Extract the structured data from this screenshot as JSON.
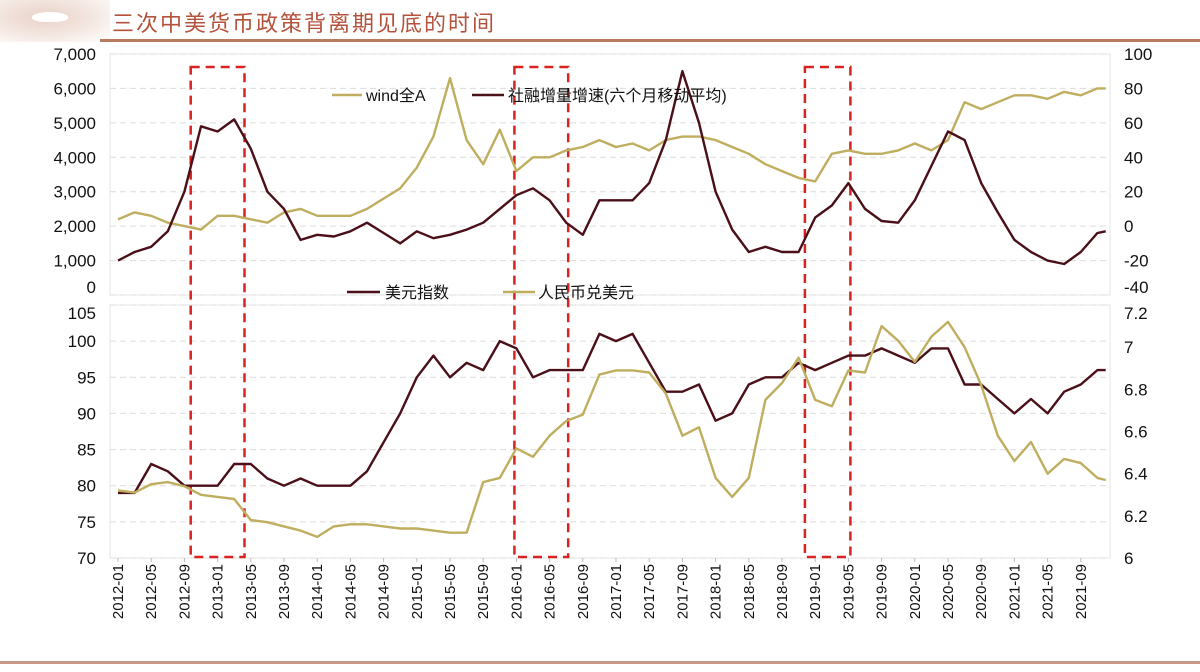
{
  "header": {
    "title": "三次中美货币政策背离期见底的时间"
  },
  "colors": {
    "gold": "#bfae5f",
    "dark": "#4a0f18",
    "highlight": "#d92222",
    "title": "#b4523c"
  },
  "chart_data": [
    {
      "type": "line",
      "title": "",
      "left_axis": {
        "ylim": [
          0,
          7000
        ],
        "ticks": [
          "0",
          "1,000",
          "2,000",
          "3,000",
          "4,000",
          "5,000",
          "6,000",
          "7,000"
        ]
      },
      "right_axis": {
        "ylim": [
          -40,
          100
        ],
        "ticks": [
          "-40",
          "-20",
          "0",
          "20",
          "40",
          "60",
          "80",
          "100"
        ]
      },
      "grid": true,
      "legend": "top-center",
      "series": [
        {
          "name": "wind全A",
          "axis": "left",
          "color": "#bfae5f",
          "x": [
            "2012-01",
            "2012-03",
            "2012-05",
            "2012-07",
            "2012-09",
            "2012-11",
            "2013-01",
            "2013-03",
            "2013-05",
            "2013-07",
            "2013-09",
            "2013-11",
            "2014-01",
            "2014-03",
            "2014-05",
            "2014-07",
            "2014-09",
            "2014-11",
            "2015-01",
            "2015-03",
            "2015-05",
            "2015-07",
            "2015-09",
            "2015-11",
            "2016-01",
            "2016-03",
            "2016-05",
            "2016-07",
            "2016-09",
            "2016-11",
            "2017-01",
            "2017-03",
            "2017-05",
            "2017-07",
            "2017-09",
            "2017-11",
            "2018-01",
            "2018-03",
            "2018-05",
            "2018-07",
            "2018-09",
            "2018-11",
            "2019-01",
            "2019-03",
            "2019-05",
            "2019-07",
            "2019-09",
            "2019-11",
            "2020-01",
            "2020-03",
            "2020-05",
            "2020-07",
            "2020-09",
            "2020-11",
            "2021-01",
            "2021-03",
            "2021-05",
            "2021-07",
            "2021-09",
            "2021-11",
            "2021-12"
          ],
          "values": [
            2200,
            2400,
            2300,
            2100,
            2000,
            1900,
            2300,
            2300,
            2200,
            2100,
            2400,
            2500,
            2300,
            2300,
            2300,
            2500,
            2800,
            3100,
            3700,
            4600,
            6300,
            4500,
            3800,
            4800,
            3600,
            4000,
            4000,
            4200,
            4300,
            4500,
            4300,
            4400,
            4200,
            4500,
            4600,
            4600,
            4500,
            4300,
            4100,
            3800,
            3600,
            3400,
            3300,
            4100,
            4200,
            4100,
            4100,
            4200,
            4400,
            4200,
            4500,
            5600,
            5400,
            5600,
            5800,
            5800,
            5700,
            5900,
            5800,
            6000,
            6000
          ]
        },
        {
          "name": "社融增量增速(六个月移动平均)",
          "axis": "right",
          "color": "#4a0f18",
          "x": [
            "2012-01",
            "2012-03",
            "2012-05",
            "2012-07",
            "2012-09",
            "2012-11",
            "2013-01",
            "2013-03",
            "2013-05",
            "2013-07",
            "2013-09",
            "2013-11",
            "2014-01",
            "2014-03",
            "2014-05",
            "2014-07",
            "2014-09",
            "2014-11",
            "2015-01",
            "2015-03",
            "2015-05",
            "2015-07",
            "2015-09",
            "2015-11",
            "2016-01",
            "2016-03",
            "2016-05",
            "2016-07",
            "2016-09",
            "2016-11",
            "2017-01",
            "2017-03",
            "2017-05",
            "2017-07",
            "2017-09",
            "2017-11",
            "2018-01",
            "2018-03",
            "2018-05",
            "2018-07",
            "2018-09",
            "2018-11",
            "2019-01",
            "2019-03",
            "2019-05",
            "2019-07",
            "2019-09",
            "2019-11",
            "2020-01",
            "2020-03",
            "2020-05",
            "2020-07",
            "2020-09",
            "2020-11",
            "2021-01",
            "2021-03",
            "2021-05",
            "2021-07",
            "2021-09",
            "2021-11",
            "2021-12"
          ],
          "values": [
            -20,
            -15,
            -12,
            -3,
            20,
            58,
            55,
            62,
            45,
            20,
            10,
            -8,
            -5,
            -6,
            -3,
            2,
            -4,
            -10,
            -3,
            -7,
            -5,
            -2,
            2,
            10,
            18,
            22,
            15,
            2,
            -5,
            15,
            15,
            15,
            25,
            50,
            90,
            60,
            20,
            -2,
            -15,
            -12,
            -15,
            -15,
            5,
            12,
            25,
            10,
            3,
            2,
            15,
            35,
            55,
            50,
            25,
            8,
            -8,
            -15,
            -20,
            -22,
            -15,
            -4,
            -3
          ]
        }
      ],
      "highlight_periods": [
        [
          "2012-10",
          "2013-04"
        ],
        [
          "2016-01",
          "2016-07"
        ],
        [
          "2018-12",
          "2019-05"
        ]
      ]
    },
    {
      "type": "line",
      "title": "",
      "left_axis": {
        "ylim": [
          70,
          105
        ],
        "ticks": [
          "70",
          "75",
          "80",
          "85",
          "90",
          "95",
          "100",
          "105"
        ]
      },
      "right_axis": {
        "ylim": [
          6,
          7.2
        ],
        "ticks": [
          "6",
          "6.2",
          "6.4",
          "6.6",
          "6.8",
          "7",
          "7.2"
        ]
      },
      "grid": true,
      "legend": "top-center",
      "xlabel": "",
      "x_ticks": [
        "2012-01",
        "2012-05",
        "2012-09",
        "2013-01",
        "2013-05",
        "2013-09",
        "2014-01",
        "2014-05",
        "2014-09",
        "2015-01",
        "2015-05",
        "2015-09",
        "2016-01",
        "2016-05",
        "2016-09",
        "2017-01",
        "2017-05",
        "2017-09",
        "2018-01",
        "2018-05",
        "2018-09",
        "2019-01",
        "2019-05",
        "2019-09",
        "2020-01",
        "2020-05",
        "2020-09",
        "2021-01",
        "2021-05",
        "2021-09"
      ],
      "series": [
        {
          "name": "美元指数",
          "axis": "left",
          "color": "#4a0f18",
          "x": [
            "2012-01",
            "2012-03",
            "2012-05",
            "2012-07",
            "2012-09",
            "2012-11",
            "2013-01",
            "2013-03",
            "2013-05",
            "2013-07",
            "2013-09",
            "2013-11",
            "2014-01",
            "2014-03",
            "2014-05",
            "2014-07",
            "2014-09",
            "2014-11",
            "2015-01",
            "2015-03",
            "2015-05",
            "2015-07",
            "2015-09",
            "2015-11",
            "2016-01",
            "2016-03",
            "2016-05",
            "2016-07",
            "2016-09",
            "2016-11",
            "2017-01",
            "2017-03",
            "2017-05",
            "2017-07",
            "2017-09",
            "2017-11",
            "2018-01",
            "2018-03",
            "2018-05",
            "2018-07",
            "2018-09",
            "2018-11",
            "2019-01",
            "2019-03",
            "2019-05",
            "2019-07",
            "2019-09",
            "2019-11",
            "2020-01",
            "2020-03",
            "2020-05",
            "2020-07",
            "2020-09",
            "2020-11",
            "2021-01",
            "2021-03",
            "2021-05",
            "2021-07",
            "2021-09",
            "2021-11",
            "2021-12"
          ],
          "values": [
            79,
            79,
            83,
            82,
            80,
            80,
            80,
            83,
            83,
            81,
            80,
            81,
            80,
            80,
            80,
            82,
            86,
            90,
            95,
            98,
            95,
            97,
            96,
            100,
            99,
            95,
            96,
            96,
            96,
            101,
            100,
            101,
            97,
            93,
            93,
            94,
            89,
            90,
            94,
            95,
            95,
            97,
            96,
            97,
            98,
            98,
            99,
            98,
            97,
            99,
            99,
            94,
            94,
            92,
            90,
            92,
            90,
            93,
            94,
            96,
            96
          ]
        },
        {
          "name": "人民币兑美元",
          "axis": "right",
          "color": "#bfae5f",
          "x": [
            "2012-01",
            "2012-03",
            "2012-05",
            "2012-07",
            "2012-09",
            "2012-11",
            "2013-01",
            "2013-03",
            "2013-05",
            "2013-07",
            "2013-09",
            "2013-11",
            "2014-01",
            "2014-03",
            "2014-05",
            "2014-07",
            "2014-09",
            "2014-11",
            "2015-01",
            "2015-03",
            "2015-05",
            "2015-07",
            "2015-09",
            "2015-11",
            "2016-01",
            "2016-03",
            "2016-05",
            "2016-07",
            "2016-09",
            "2016-11",
            "2017-01",
            "2017-03",
            "2017-05",
            "2017-07",
            "2017-09",
            "2017-11",
            "2018-01",
            "2018-03",
            "2018-05",
            "2018-07",
            "2018-09",
            "2018-11",
            "2019-01",
            "2019-03",
            "2019-05",
            "2019-07",
            "2019-09",
            "2019-11",
            "2020-01",
            "2020-03",
            "2020-05",
            "2020-07",
            "2020-09",
            "2020-11",
            "2021-01",
            "2021-03",
            "2021-05",
            "2021-07",
            "2021-09",
            "2021-11",
            "2021-12"
          ],
          "values": [
            6.32,
            6.31,
            6.35,
            6.36,
            6.34,
            6.3,
            6.29,
            6.28,
            6.18,
            6.17,
            6.15,
            6.13,
            6.1,
            6.15,
            6.16,
            6.16,
            6.15,
            6.14,
            6.14,
            6.13,
            6.12,
            6.12,
            6.36,
            6.38,
            6.52,
            6.48,
            6.58,
            6.65,
            6.68,
            6.87,
            6.89,
            6.89,
            6.88,
            6.78,
            6.58,
            6.62,
            6.38,
            6.29,
            6.38,
            6.75,
            6.83,
            6.95,
            6.75,
            6.72,
            6.89,
            6.88,
            7.1,
            7.03,
            6.93,
            7.05,
            7.12,
            7.0,
            6.82,
            6.58,
            6.46,
            6.55,
            6.4,
            6.47,
            6.45,
            6.38,
            6.37
          ]
        }
      ],
      "highlight_periods": [
        [
          "2012-10",
          "2013-04"
        ],
        [
          "2016-01",
          "2016-07"
        ],
        [
          "2018-12",
          "2019-05"
        ]
      ]
    }
  ]
}
